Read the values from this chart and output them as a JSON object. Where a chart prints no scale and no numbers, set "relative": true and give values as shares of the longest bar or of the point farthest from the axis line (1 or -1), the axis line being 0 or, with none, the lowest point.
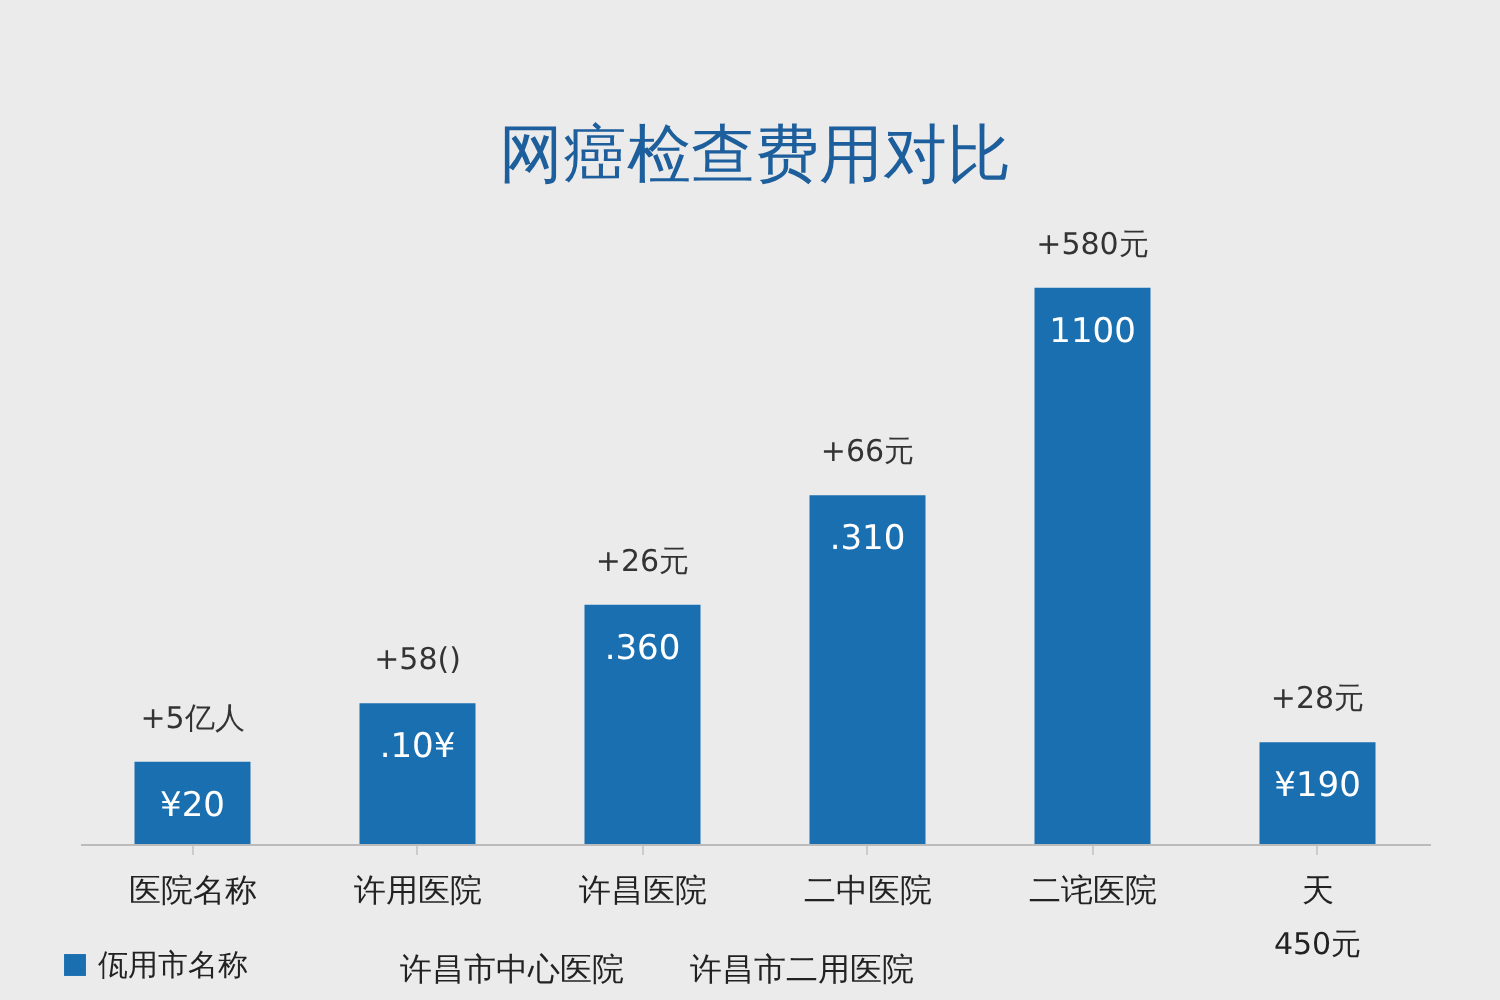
{
  "chart_data": {
    "type": "bar",
    "title": "网癌检查费用对比",
    "categories": [
      "医院名称",
      "许用医院",
      "许昌医院",
      "二中医院",
      "二诧医院",
      "天"
    ],
    "series": [
      {
        "name": "佤用市名称",
        "color": "#1a6fb0",
        "values": [
          0.148,
          0.253,
          0.43,
          0.627,
          1,
          0.183
        ]
      }
    ],
    "relative": true,
    "legend": "bottom left",
    "annotations": [
      "+5亿人",
      "+58()",
      "+26元",
      "+66元",
      "+580元",
      "+28元",
      "¥20",
      ".10¥",
      ".360",
      ".310",
      "1100",
      "¥190",
      "450元",
      "许昌市中心医院",
      "许昌市二用医院"
    ]
  }
}
